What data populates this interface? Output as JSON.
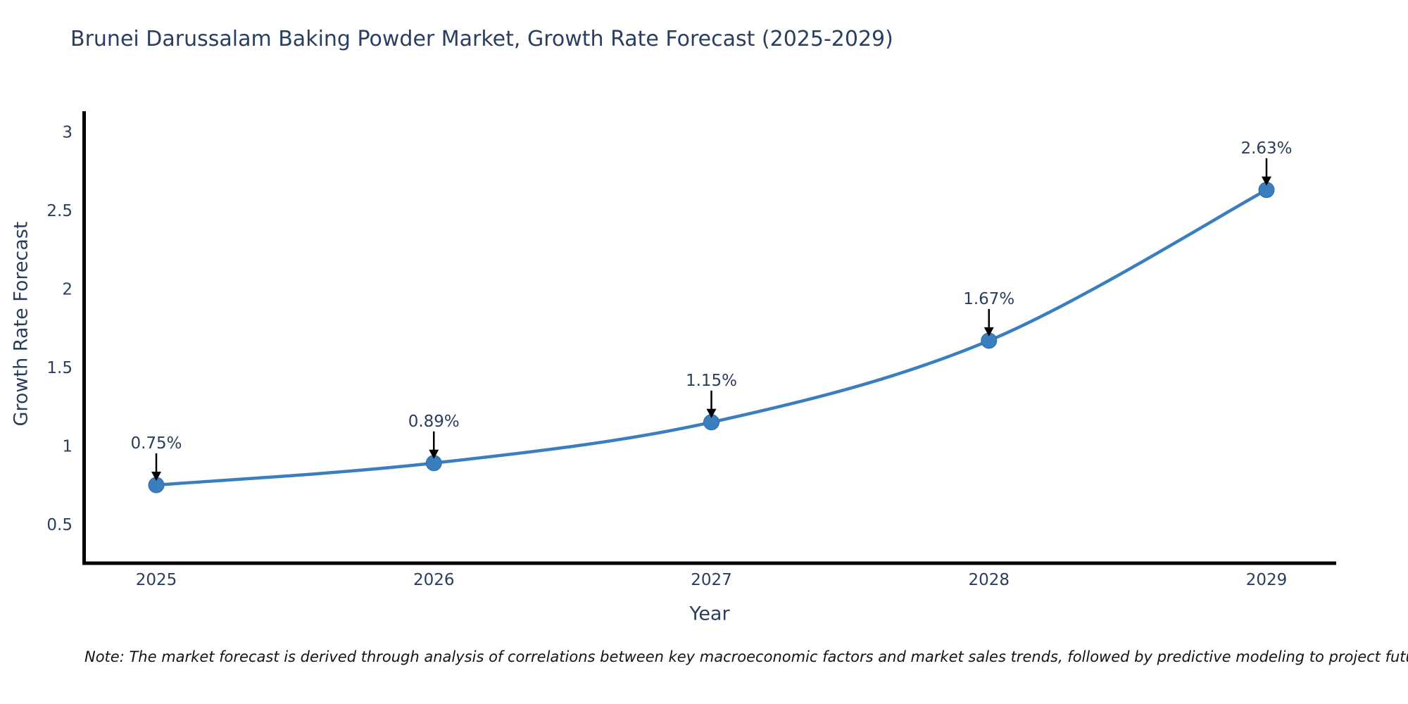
{
  "chart_data": {
    "type": "line",
    "title": "Brunei Darussalam Baking Powder Market, Growth Rate Forecast (2025-2029)",
    "xlabel": "Year",
    "ylabel": "Growth Rate Forecast",
    "x": [
      2025,
      2026,
      2027,
      2028,
      2029
    ],
    "series": [
      {
        "name": "Growth Rate Forecast",
        "values": [
          0.75,
          0.89,
          1.15,
          1.67,
          2.63
        ]
      }
    ],
    "point_labels": [
      "0.75%",
      "0.89%",
      "1.15%",
      "1.67%",
      "2.63%"
    ],
    "yticks": [
      0.5,
      1,
      1.5,
      2,
      2.5,
      3
    ],
    "xticks": [
      2025,
      2026,
      2027,
      2028,
      2029
    ],
    "ylim": [
      0.25,
      3.15
    ],
    "grid": false,
    "legend": "none",
    "line_color": "#3a7ebf",
    "marker_color": "#3a7ebf",
    "marker_edge_color": "#2f6ba3",
    "annotation_arrow_color": "#000000",
    "annotation_text_color": "#2a3f5f",
    "axis_color": "#000000",
    "tick_text_color": "#2a3f5f",
    "note_color": "#141414",
    "note": "Note: The market forecast is derived through analysis of correlations between key macroeconomic factors and market sales trends, followed by predictive modeling to project future sales"
  }
}
